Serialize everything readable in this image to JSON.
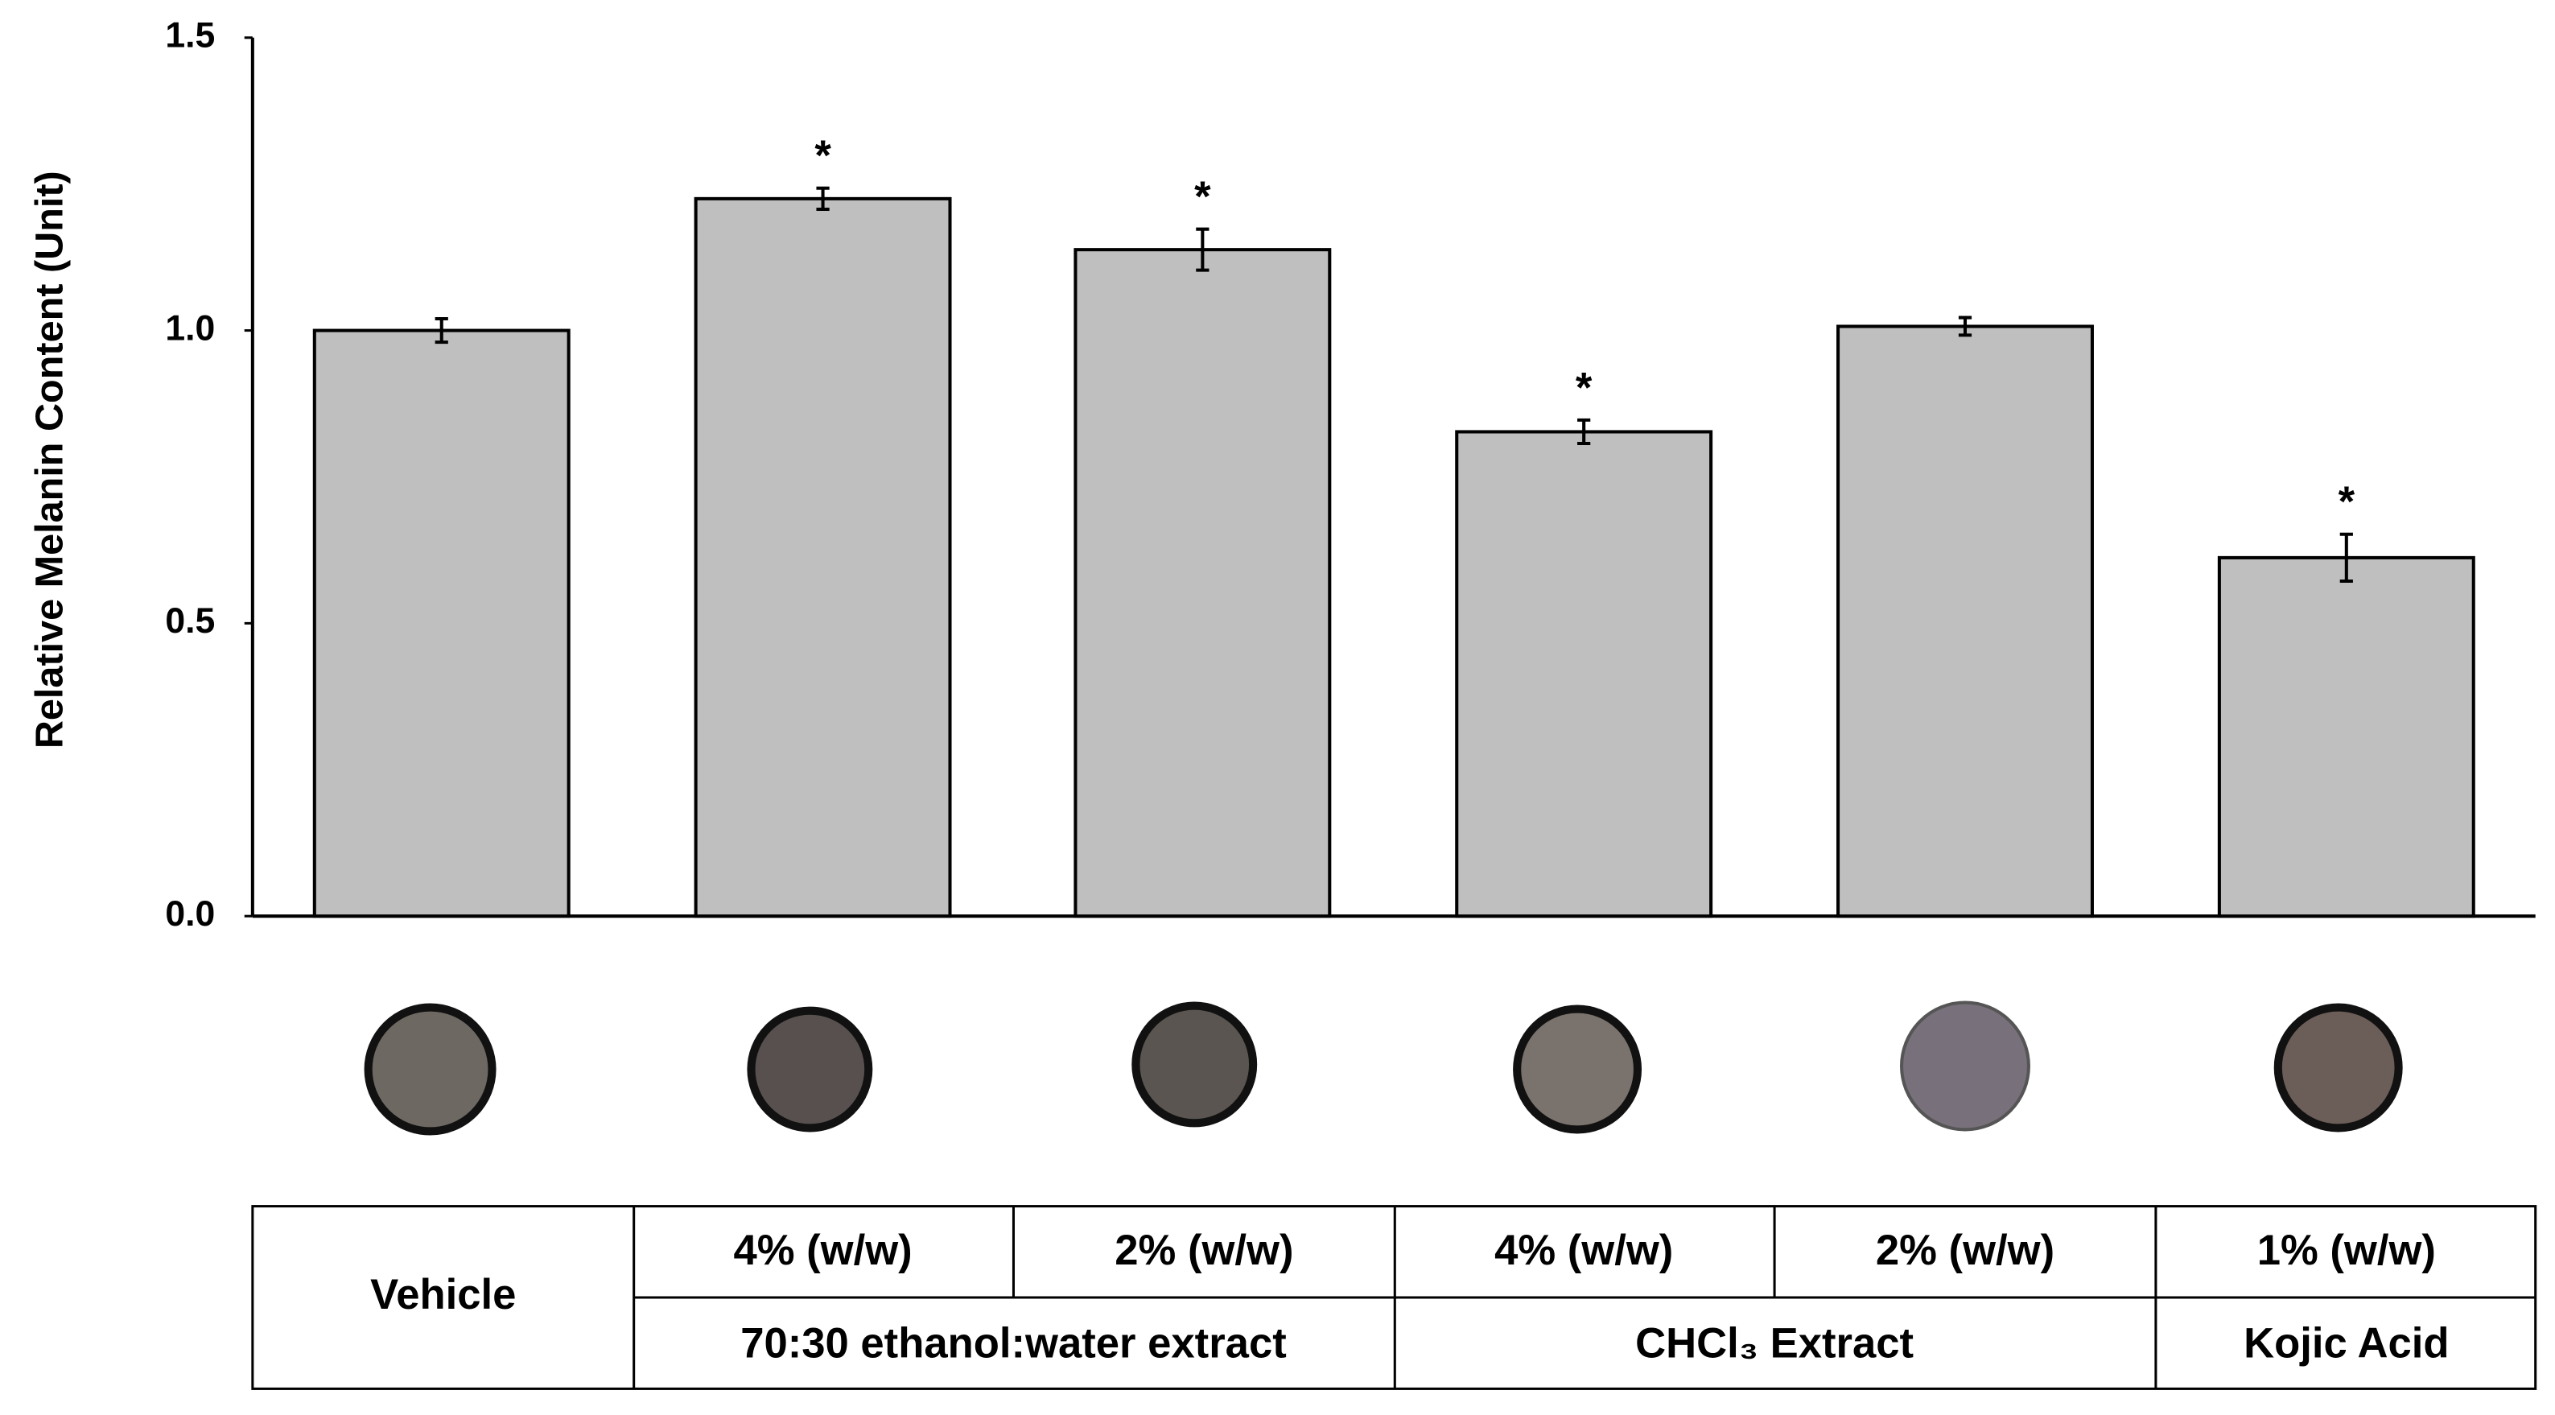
{
  "chart_data": {
    "type": "bar",
    "y_label": "Relative Melanin Content (Unit)",
    "categories": [
      "Vehicle",
      "4% (w/w)",
      "2% (w/w)",
      "4% (w/w)",
      "2% (w/w)",
      "1% (w/w)"
    ],
    "values": [
      1.0,
      1.225,
      1.138,
      0.827,
      1.007,
      0.612
    ],
    "errors": [
      0.02,
      0.018,
      0.035,
      0.02,
      0.015,
      0.04
    ],
    "significance": [
      null,
      "*",
      "*",
      "*",
      null,
      "*"
    ],
    "color": "#bfbfbf",
    "ylim": [
      0,
      1.5
    ],
    "yticks": [
      {
        "value": 0,
        "label": "0.0"
      },
      0.5,
      {
        "value": 1,
        "label": "1.0"
      },
      1.5
    ],
    "groups": [
      "70:30 ethanol:water extract",
      "CHCl₃ Extract",
      "Kojic Acid"
    ]
  }
}
